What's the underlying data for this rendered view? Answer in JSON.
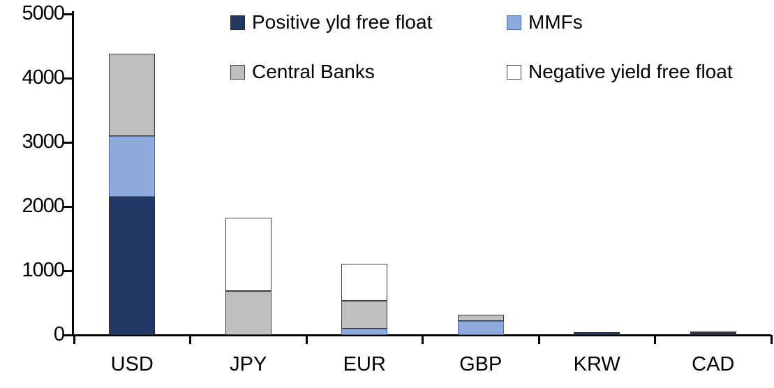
{
  "chart_data": {
    "type": "bar",
    "stacked": true,
    "title": "",
    "xlabel": "",
    "ylabel": "",
    "categories": [
      "USD",
      "JPY",
      "EUR",
      "GBP",
      "KRW",
      "CAD"
    ],
    "series": [
      {
        "name": "Positive yld free float",
        "color": "#203864",
        "border": "#2b2b2b",
        "values": [
          2150,
          0,
          0,
          0,
          40,
          30
        ]
      },
      {
        "name": "MMFs",
        "color": "#8FAADC",
        "border": "#4a6ba8",
        "values": [
          950,
          0,
          100,
          220,
          0,
          0
        ]
      },
      {
        "name": "Central Banks",
        "color": "#BFBFBF",
        "border": "#3d3d3d",
        "values": [
          1280,
          690,
          430,
          100,
          0,
          25
        ]
      },
      {
        "name": "Negative yield free float",
        "color": "#FFFFFF",
        "border": "#3d3d3d",
        "values": [
          0,
          1140,
          580,
          0,
          0,
          0
        ]
      }
    ],
    "totals": [
      4380,
      1830,
      1110,
      320,
      40,
      55
    ],
    "ylim": [
      0,
      5000
    ],
    "yticks": [
      "0",
      "1000",
      "2000",
      "3000",
      "4000",
      "5000"
    ],
    "grid": false,
    "legend_position": "top"
  },
  "colors": {
    "axis": "#000000",
    "background": "#ffffff",
    "text": "#000000"
  }
}
